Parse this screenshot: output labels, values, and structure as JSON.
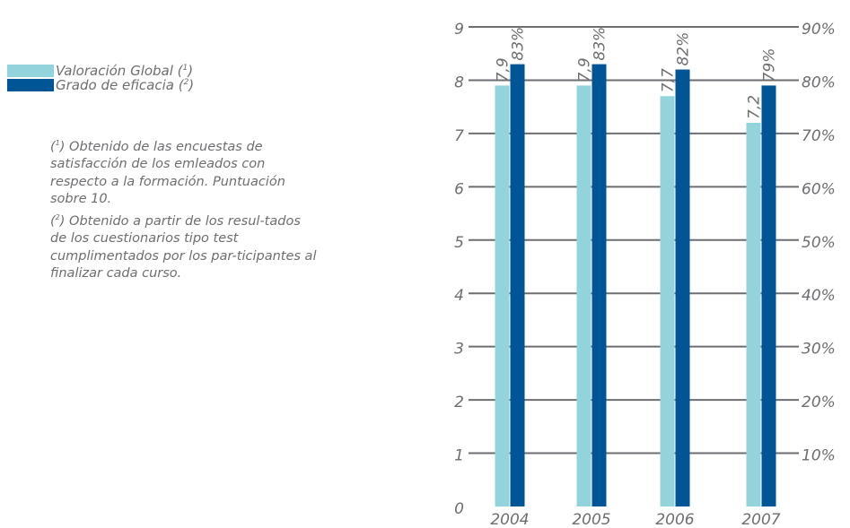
{
  "legend": {
    "items": [
      {
        "label": "Valoración Global (",
        "ref": "1",
        "close": ")",
        "color": "#93d4dc"
      },
      {
        "label": "Grado de eficacia (",
        "ref": "2",
        "close": ")",
        "color": "#005596"
      }
    ]
  },
  "notes": {
    "note1_open": "(",
    "note1_ref": "1",
    "note1_text": ") Obtenido de las encuestas de satisfacción de los emleados con respecto a la formación. Puntuación sobre 10.",
    "note2_open": "(",
    "note2_ref": "2",
    "note2_text": ") Obtenido a partir de los resul-tados de los cuestionarios tipo test cumplimentados por los par-ticipantes al finalizar cada curso."
  },
  "chart_data": {
    "type": "bar",
    "categories": [
      "2004",
      "2005",
      "2006",
      "2007"
    ],
    "series": [
      {
        "name": "Valoración Global",
        "values": [
          7.9,
          7.9,
          7.7,
          7.2
        ],
        "labels": [
          "7,9",
          "7,9",
          "7,7",
          "7,2"
        ],
        "axis": "left",
        "color": "#93d4dc"
      },
      {
        "name": "Grado de eficacia",
        "values": [
          83,
          83,
          82,
          79
        ],
        "labels": [
          "83%",
          "83%",
          "82%",
          "79%"
        ],
        "axis": "right",
        "color": "#005596"
      }
    ],
    "left_axis": {
      "ylim": [
        0,
        9
      ],
      "ticks": [
        "0",
        "1",
        "2",
        "3",
        "4",
        "5",
        "6",
        "7",
        "8",
        "9"
      ]
    },
    "right_axis": {
      "ylim": [
        0,
        90
      ],
      "ticks": [
        "10%",
        "20%",
        "30%",
        "40%",
        "50%",
        "60%",
        "70%",
        "80%",
        "90%"
      ]
    },
    "grid": true,
    "legend_position": "left",
    "gridline_color": "#6d6e71"
  }
}
